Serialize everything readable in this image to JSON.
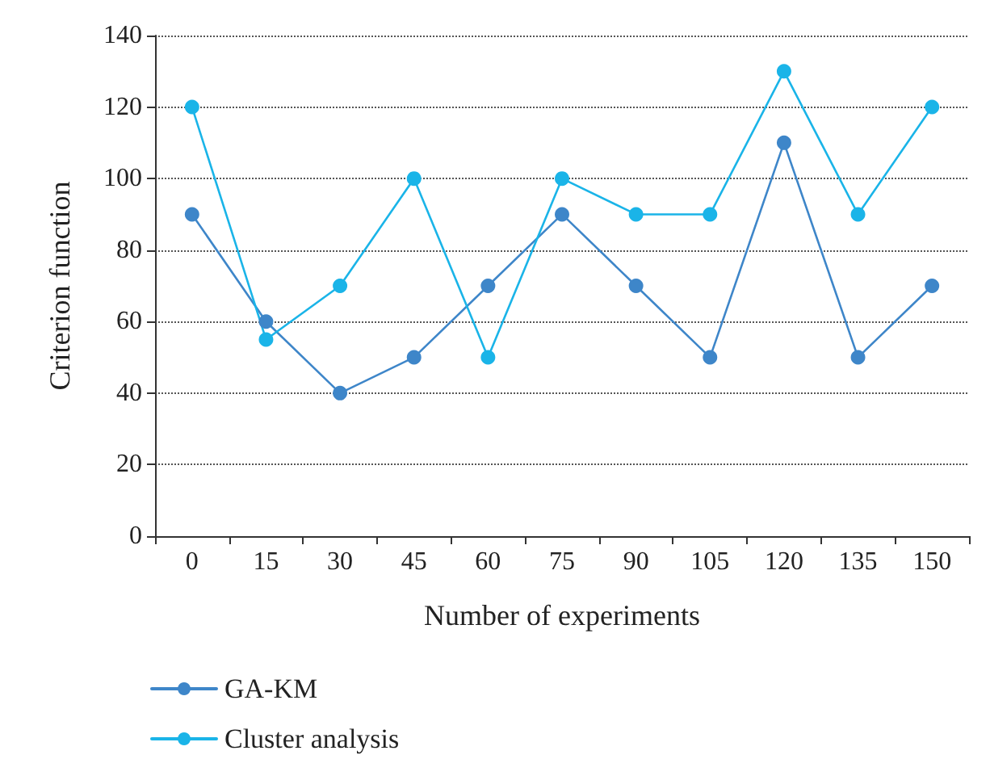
{
  "chart_data": {
    "type": "line",
    "xlabel": "Number of experiments",
    "ylabel": "Criterion function",
    "categories": [
      "0",
      "15",
      "30",
      "45",
      "60",
      "75",
      "90",
      "105",
      "120",
      "135",
      "150"
    ],
    "series": [
      {
        "name": "GA-KM",
        "color": "#3e86c9",
        "values": [
          90,
          60,
          40,
          50,
          70,
          90,
          70,
          50,
          110,
          50,
          70
        ]
      },
      {
        "name": "Cluster analysis",
        "color": "#1ab4e8",
        "values": [
          120,
          55,
          70,
          100,
          50,
          100,
          90,
          90,
          130,
          90,
          120
        ]
      }
    ],
    "ylim": [
      0,
      140
    ],
    "yticks": [
      0,
      20,
      40,
      60,
      80,
      100,
      120,
      140
    ],
    "grid": "y",
    "legend": "bottom left",
    "marker": "circle",
    "line_style": "solid"
  }
}
